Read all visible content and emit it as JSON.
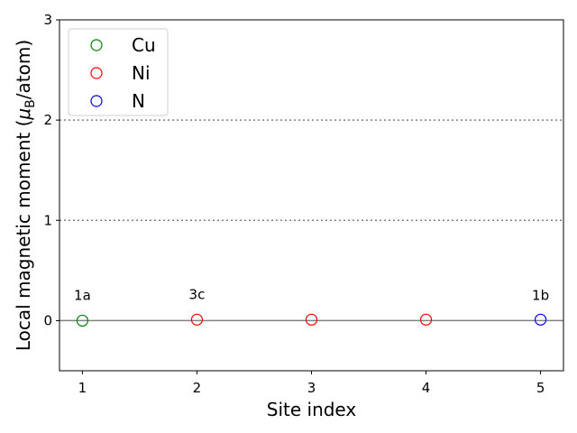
{
  "chart_data": {
    "type": "scatter",
    "xlabel": "Site index",
    "ylabel_main": "Local magnetic moment (",
    "ylabel_mu": "μ",
    "ylabel_sub": "B",
    "ylabel_tail": "/atom)",
    "xlim": [
      0.8,
      5.2
    ],
    "ylim": [
      -0.5,
      3
    ],
    "xticks": [
      1,
      2,
      3,
      4,
      5
    ],
    "yticks": [
      0,
      1,
      2,
      3
    ],
    "marker": "open-circle",
    "series": [
      {
        "name": "Cu",
        "color": "#008000",
        "points": [
          {
            "x": 1,
            "y": 0.0
          }
        ]
      },
      {
        "name": "Ni",
        "color": "#ff0000",
        "points": [
          {
            "x": 2,
            "y": 0.01
          },
          {
            "x": 3,
            "y": 0.01
          },
          {
            "x": 4,
            "y": 0.01
          }
        ]
      },
      {
        "name": "N",
        "color": "#0000ff",
        "points": [
          {
            "x": 5,
            "y": 0.01
          }
        ]
      }
    ],
    "reference_lines": [
      {
        "y": 0,
        "style": "solid",
        "color": "#808080"
      },
      {
        "y": 1,
        "style": "dotted",
        "color": "#808080"
      },
      {
        "y": 2,
        "style": "dotted",
        "color": "#808080"
      }
    ],
    "annotations": [
      {
        "text": "1a",
        "x": 1,
        "y": 0.25
      },
      {
        "text": "3c",
        "x": 2,
        "y": 0.26
      },
      {
        "text": "1b",
        "x": 5,
        "y": 0.25
      }
    ],
    "legend": {
      "placement": "top-left",
      "entries": [
        "Cu",
        "Ni",
        "N"
      ]
    }
  }
}
